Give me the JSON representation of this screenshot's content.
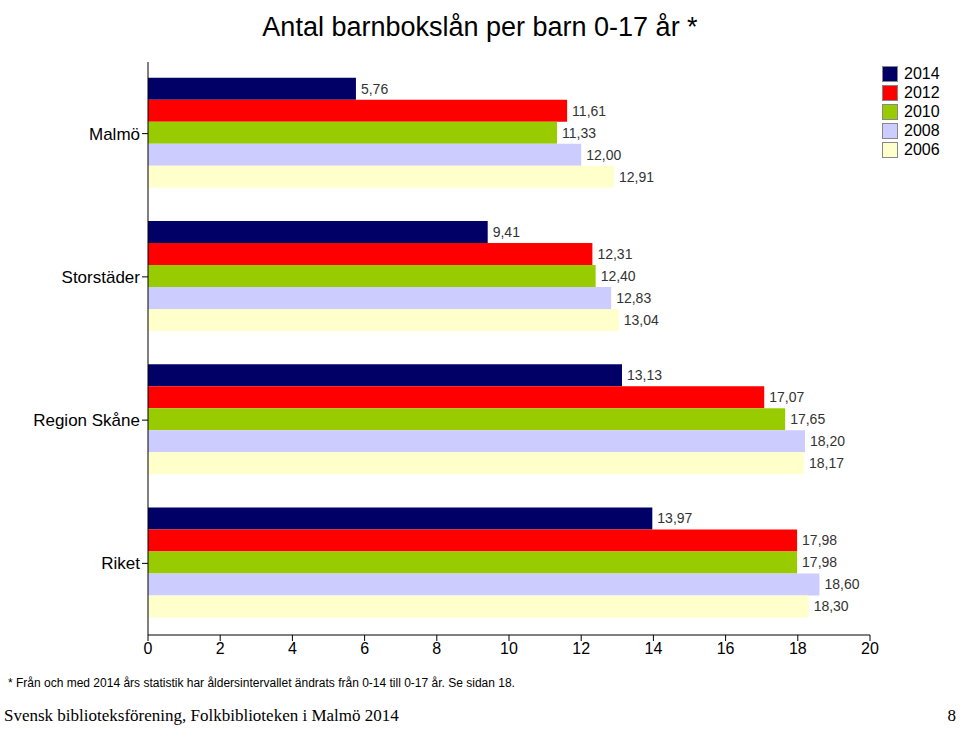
{
  "chart_data": {
    "type": "bar",
    "orientation": "horizontal",
    "title": "Antal barnbokslån per barn 0-17 år *",
    "categories": [
      "Malmö",
      "Storstäder",
      "Region Skåne",
      "Riket"
    ],
    "series": [
      {
        "name": "2014",
        "color": "#000066",
        "values": [
          5.76,
          9.41,
          13.13,
          13.97
        ],
        "value_labels": [
          "5,76",
          "9,41",
          "13,13",
          "13,97"
        ]
      },
      {
        "name": "2012",
        "color": "#ff0000",
        "values": [
          11.61,
          12.31,
          17.07,
          17.98
        ],
        "value_labels": [
          "11,61",
          "12,31",
          "17,07",
          "17,98"
        ]
      },
      {
        "name": "2010",
        "color": "#99cc00",
        "values": [
          11.33,
          12.4,
          17.65,
          17.98
        ],
        "value_labels": [
          "11,33",
          "12,40",
          "17,65",
          "17,98"
        ]
      },
      {
        "name": "2008",
        "color": "#ccccff",
        "values": [
          12.0,
          12.83,
          18.2,
          18.6
        ],
        "value_labels": [
          "12,00",
          "12,83",
          "18,20",
          "18,60"
        ]
      },
      {
        "name": "2006",
        "color": "#ffffcc",
        "values": [
          12.91,
          13.04,
          18.17,
          18.3
        ],
        "value_labels": [
          "12,91",
          "13,04",
          "18,17",
          "18,30"
        ]
      }
    ],
    "xlim": [
      0,
      20
    ],
    "xticks": [
      0,
      2,
      4,
      6,
      8,
      10,
      12,
      14,
      16,
      18,
      20
    ],
    "grid": false,
    "legend": "upper right",
    "data_labels": true,
    "annotations": [
      "* Från och med 2014 års statistik har åldersintervallet ändrats från 0-14 till 0-17 år. Se sidan 18.",
      "Svensk biblioteksförening, Folkbiblioteken i Malmö 2014",
      "8"
    ]
  }
}
